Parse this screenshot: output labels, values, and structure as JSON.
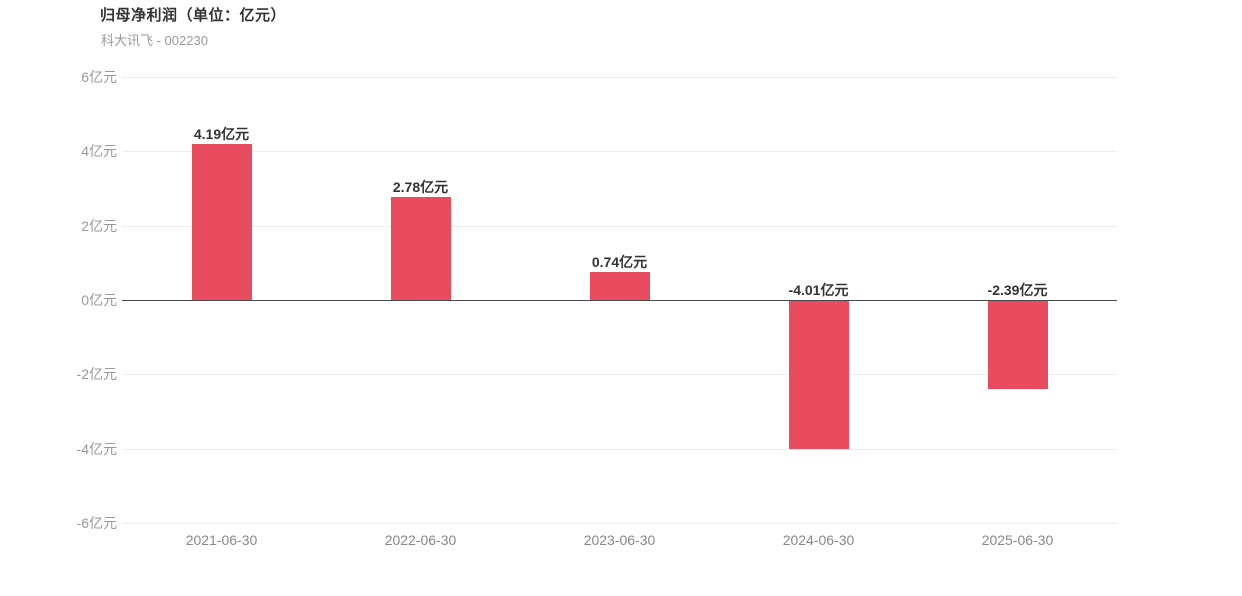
{
  "header": {
    "title": "归母净利润（单位：亿元）",
    "subtitle": "科大讯飞 - 002230"
  },
  "chart_data": {
    "type": "bar",
    "title": "归母净利润（单位：亿元）",
    "subtitle": "科大讯飞 - 002230",
    "categories": [
      "2021-06-30",
      "2022-06-30",
      "2023-06-30",
      "2024-06-30",
      "2025-06-30"
    ],
    "values": [
      4.19,
      2.78,
      0.74,
      -4.01,
      -2.39
    ],
    "value_labels": [
      "4.19亿元",
      "2.78亿元",
      "0.74亿元",
      "-4.01亿元",
      "-2.39亿元"
    ],
    "unit": "亿元",
    "xlabel": "",
    "ylabel": "",
    "ylim": [
      -6,
      6
    ],
    "yticks": [
      6,
      4,
      2,
      0,
      -2,
      -4,
      -6
    ],
    "ytick_labels": [
      "6亿元",
      "4亿元",
      "2亿元",
      "0亿元",
      "-2亿元",
      "-4亿元",
      "-6亿元"
    ],
    "grid": true,
    "legend_position": "none"
  },
  "colors": {
    "bar": "#e84c5e",
    "grid_line": "#ededed",
    "zero_line": "#4a4a4a",
    "ytick_label": "#999999",
    "xtick_label": "#888888",
    "value_label": "#333333",
    "title": "#333333",
    "subtitle": "#999999",
    "background": "#ffffff"
  }
}
